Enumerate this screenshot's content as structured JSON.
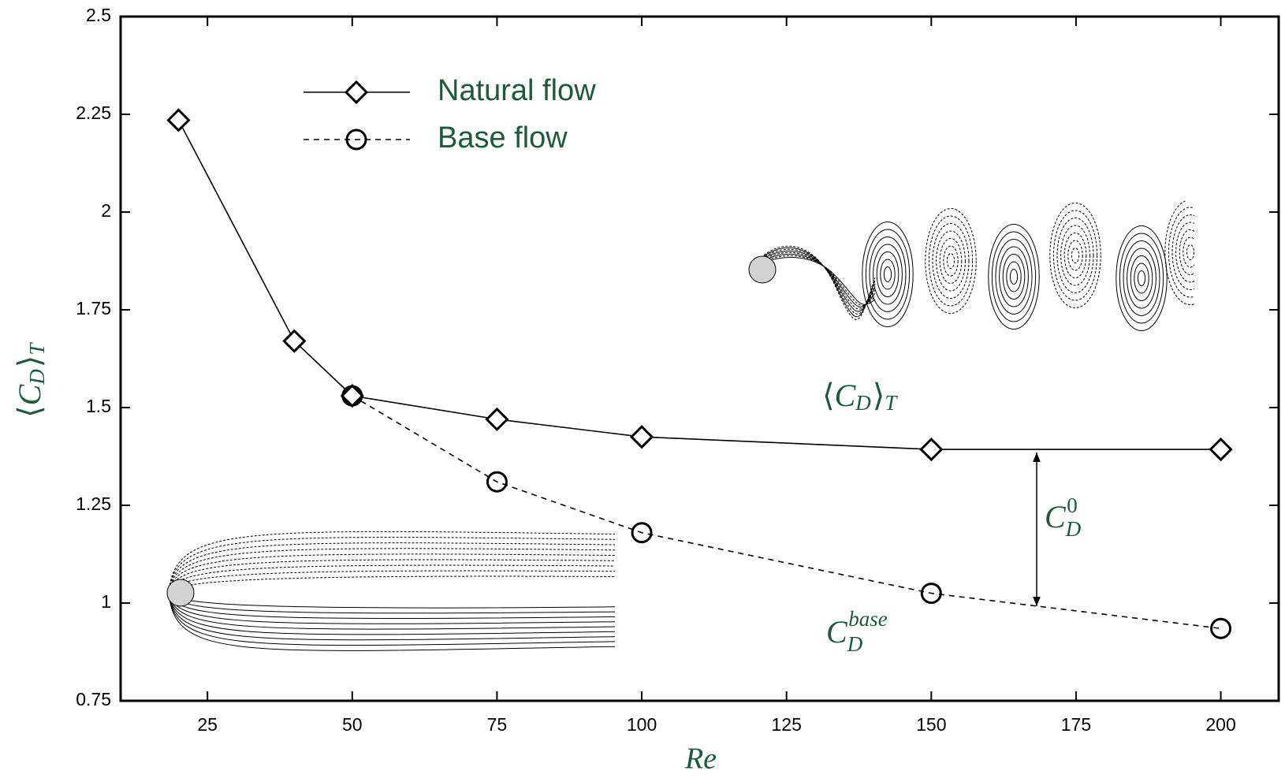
{
  "chart_data": {
    "type": "line",
    "x_label": "Re",
    "y_label": [
      "⟨",
      "C",
      "D",
      "⟩",
      "T"
    ],
    "xlim": [
      10,
      210
    ],
    "xticks": [
      25,
      50,
      75,
      100,
      125,
      150,
      175,
      200
    ],
    "ylim": [
      0.75,
      2.5
    ],
    "yticks": [
      0.75,
      1,
      1.25,
      1.5,
      1.75,
      2,
      2.25,
      2.5
    ],
    "legend": "upper left",
    "series": [
      {
        "name": "Natural flow",
        "color": "#000000",
        "marker": "diamond",
        "linestyle": "solid",
        "x": [
          20,
          40,
          50,
          75,
          100,
          150,
          200
        ],
        "values": [
          2.235,
          1.67,
          1.53,
          1.47,
          1.425,
          1.393,
          1.393
        ]
      },
      {
        "name": "Base flow",
        "color": "#000000",
        "marker": "circle",
        "linestyle": "dashed",
        "x": [
          50,
          75,
          100,
          150,
          200
        ],
        "values": [
          1.53,
          1.31,
          1.18,
          1.025,
          0.935
        ]
      }
    ],
    "annotations": [
      {
        "text": [
          "⟨",
          "C",
          "D",
          "⟩",
          "T"
        ]
      },
      {
        "text": [
          "C",
          "D",
          "0"
        ]
      },
      {
        "text": [
          "C",
          "D",
          "base"
        ]
      }
    ]
  }
}
